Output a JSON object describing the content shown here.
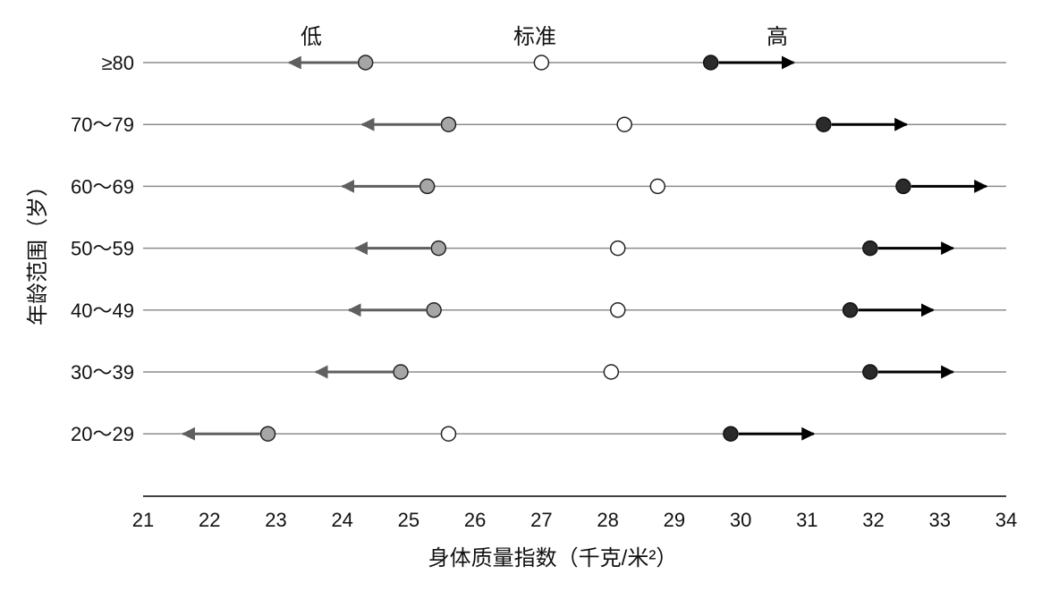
{
  "chart_data": {
    "type": "scatter",
    "title": "",
    "xlabel": "身体质量指数（千克/米²）",
    "ylabel": "年龄范围（岁）",
    "xlim": [
      21,
      34
    ],
    "x_ticks": [
      "21",
      "22",
      "23",
      "24",
      "25",
      "26",
      "27",
      "28",
      "29",
      "30",
      "31",
      "32",
      "33",
      "34"
    ],
    "column_headers": {
      "low": "低",
      "standard": "标准",
      "high": "高"
    },
    "categories": [
      "≥80",
      "70～79",
      "60～69",
      "50～59",
      "40～49",
      "30～39",
      "20～29"
    ],
    "series": [
      {
        "name": "低",
        "values": [
          24.35,
          25.6,
          25.28,
          25.45,
          25.38,
          24.88,
          22.88
        ],
        "arrow_to": [
          23.2,
          24.3,
          24.0,
          24.2,
          24.1,
          23.6,
          21.6
        ]
      },
      {
        "name": "标准",
        "values": [
          27.0,
          28.25,
          28.75,
          28.15,
          28.15,
          28.05,
          25.6
        ]
      },
      {
        "name": "高",
        "values": [
          29.55,
          31.25,
          32.45,
          31.95,
          31.65,
          31.95,
          29.85
        ],
        "arrow_to": [
          30.8,
          32.5,
          33.7,
          33.2,
          32.9,
          33.2,
          31.1
        ]
      }
    ],
    "grid": "horizontal",
    "colors": {
      "low": "#a6a6a6",
      "low_arrow": "#5f5f5f",
      "standard": "#ffffff",
      "high": "#2b2b2b",
      "high_arrow": "#000000",
      "line": "#8c8c8c",
      "axis": "#000000"
    }
  }
}
